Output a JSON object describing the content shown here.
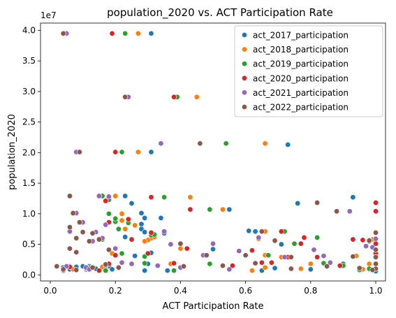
{
  "chart_data": {
    "type": "scatter",
    "title": "population_2020 vs. ACT Participation Rate",
    "xlabel": "ACT Participation Rate",
    "ylabel": "population_2020",
    "y_offset_text": "1e7",
    "xlim": [
      -0.03,
      1.03
    ],
    "ylim": [
      -1000000,
      41200000
    ],
    "x_ticks": [
      0.0,
      0.2,
      0.4,
      0.6,
      0.8,
      1.0
    ],
    "x_tick_labels": [
      "0.0",
      "0.2",
      "0.4",
      "0.6",
      "0.8",
      "1.0"
    ],
    "y_ticks": [
      0,
      5000000,
      10000000,
      15000000,
      20000000,
      25000000,
      30000000,
      35000000,
      40000000
    ],
    "y_tick_labels": [
      "0.0",
      "0.5",
      "1.0",
      "1.5",
      "2.0",
      "2.5",
      "3.0",
      "3.5",
      "4.0"
    ],
    "grid": false,
    "legend_position": "top-right",
    "series": [
      {
        "name": "act_2017_participation",
        "color": "#1f77b4",
        "points": [
          [
            0.31,
            39500000
          ],
          [
            0.31,
            20100000
          ],
          [
            0.73,
            21300000
          ],
          [
            0.23,
            12900000
          ],
          [
            0.93,
            12700000
          ],
          [
            0.25,
            11700000
          ],
          [
            0.76,
            11700000
          ],
          [
            0.55,
            10700000
          ],
          [
            0.28,
            10100000
          ],
          [
            0.29,
            9300000
          ],
          [
            0.34,
            9300000
          ],
          [
            0.28,
            8300000
          ],
          [
            0.28,
            7500000
          ],
          [
            0.29,
            7000000
          ],
          [
            0.35,
            6800000
          ],
          [
            0.63,
            7100000
          ],
          [
            0.23,
            6200000
          ],
          [
            0.31,
            3600000
          ],
          [
            0.26,
            3100000
          ],
          [
            0.71,
            5000000
          ],
          [
            0.5,
            4200000
          ],
          [
            0.3,
            1800000
          ],
          [
            0.29,
            700000
          ],
          [
            0.8,
            900000
          ],
          [
            0.36,
            700000
          ],
          [
            0.18,
            1400000
          ],
          [
            0.14,
            1000000
          ],
          [
            0.12,
            1400000
          ],
          [
            0.06,
            900000
          ],
          [
            0.04,
            1200000
          ],
          [
            0.69,
            1100000
          ],
          [
            0.84,
            1900000
          ],
          [
            0.65,
            700000
          ],
          [
            1.0,
            5100000
          ],
          [
            1.0,
            3200000
          ],
          [
            1.0,
            2900000
          ],
          [
            1.0,
            4000000
          ],
          [
            1.0,
            1800000
          ],
          [
            1.0,
            1000000
          ],
          [
            1.0,
            600000
          ],
          [
            1.0,
            3000000
          ],
          [
            0.98,
            1800000
          ],
          [
            0.98,
            900000
          ],
          [
            0.9,
            1800000
          ],
          [
            0.19,
            900000
          ],
          [
            0.21,
            1100000
          ],
          [
            0.17,
            700000
          ],
          [
            0.08,
            1300000
          ],
          [
            0.1,
            1400000
          ],
          [
            0.4,
            4300000
          ],
          [
            0.61,
            7200000
          ]
        ]
      },
      {
        "name": "act_2018_participation",
        "color": "#ff7f0e",
        "points": [
          [
            0.27,
            39500000
          ],
          [
            0.45,
            29100000
          ],
          [
            0.27,
            20100000
          ],
          [
            0.66,
            21500000
          ],
          [
            0.2,
            12900000
          ],
          [
            0.43,
            12700000
          ],
          [
            0.22,
            10000000
          ],
          [
            0.53,
            10700000
          ],
          [
            0.22,
            8900000
          ],
          [
            0.31,
            6000000
          ],
          [
            0.3,
            5700000
          ],
          [
            0.15,
            5900000
          ],
          [
            0.32,
            6200000
          ],
          [
            0.64,
            5900000
          ],
          [
            0.66,
            7100000
          ],
          [
            0.71,
            2900000
          ],
          [
            0.66,
            3200000
          ],
          [
            0.4,
            4300000
          ],
          [
            0.23,
            7500000
          ],
          [
            0.29,
            5500000
          ],
          [
            0.26,
            8100000
          ],
          [
            0.17,
            1000000
          ],
          [
            0.13,
            1200000
          ],
          [
            0.07,
            900000
          ],
          [
            0.05,
            1400000
          ],
          [
            0.8,
            1800000
          ],
          [
            0.77,
            1000000
          ],
          [
            0.89,
            1500000
          ],
          [
            1.0,
            5100000
          ],
          [
            0.99,
            5800000
          ],
          [
            1.0,
            2900000
          ],
          [
            0.94,
            3100000
          ],
          [
            0.98,
            1800000
          ],
          [
            0.99,
            800000
          ],
          [
            0.96,
            900000
          ],
          [
            0.37,
            1800000
          ],
          [
            0.19,
            3500000
          ],
          [
            0.16,
            1300000
          ],
          [
            0.62,
            700000
          ],
          [
            0.66,
            1200000
          ]
        ]
      },
      {
        "name": "act_2019_participation",
        "color": "#2ca02c",
        "points": [
          [
            0.23,
            39500000
          ],
          [
            0.39,
            29100000
          ],
          [
            0.22,
            20100000
          ],
          [
            0.54,
            21500000
          ],
          [
            0.16,
            12900000
          ],
          [
            0.35,
            12700000
          ],
          [
            0.18,
            12300000
          ],
          [
            0.49,
            10700000
          ],
          [
            0.18,
            10000000
          ],
          [
            0.24,
            8500000
          ],
          [
            0.2,
            8700000
          ],
          [
            0.21,
            7500000
          ],
          [
            0.31,
            6500000
          ],
          [
            0.32,
            6600000
          ],
          [
            0.67,
            3200000
          ],
          [
            0.72,
            7100000
          ],
          [
            0.75,
            5100000
          ],
          [
            0.82,
            6100000
          ],
          [
            0.98,
            5700000
          ],
          [
            1.0,
            3900000
          ],
          [
            0.29,
            3000000
          ],
          [
            0.22,
            3500000
          ],
          [
            0.16,
            5800000
          ],
          [
            0.12,
            1200000
          ],
          [
            0.11,
            900000
          ],
          [
            0.06,
            1400000
          ],
          [
            0.38,
            700000
          ],
          [
            0.49,
            1800000
          ],
          [
            0.73,
            2900000
          ],
          [
            0.84,
            1900000
          ],
          [
            0.9,
            1500000
          ],
          [
            1.0,
            2900000
          ],
          [
            1.0,
            4100000
          ],
          [
            1.0,
            1800000
          ],
          [
            1.0,
            1000000
          ],
          [
            0.95,
            800000
          ],
          [
            0.98,
            1000000
          ],
          [
            0.2,
            9200000
          ],
          [
            0.29,
            1900000
          ],
          [
            0.17,
            700000
          ]
        ]
      },
      {
        "name": "act_2020_participation",
        "color": "#d62728",
        "points": [
          [
            0.19,
            39500000
          ],
          [
            0.38,
            29100000
          ],
          [
            0.2,
            20100000
          ],
          [
            0.15,
            12900000
          ],
          [
            0.31,
            12700000
          ],
          [
            0.17,
            12100000
          ],
          [
            0.43,
            10700000
          ],
          [
            0.18,
            8600000
          ],
          [
            0.24,
            9100000
          ],
          [
            0.25,
            5800000
          ],
          [
            0.31,
            6900000
          ],
          [
            0.71,
            7100000
          ],
          [
            0.77,
            5100000
          ],
          [
            0.78,
            6100000
          ],
          [
            1.0,
            11800000
          ],
          [
            1.0,
            10400000
          ],
          [
            0.96,
            5700000
          ],
          [
            0.98,
            5500000
          ],
          [
            0.65,
            2000000
          ],
          [
            0.62,
            4000000
          ],
          [
            0.3,
            3500000
          ],
          [
            0.42,
            4300000
          ],
          [
            0.56,
            1500000
          ],
          [
            0.73,
            2900000
          ],
          [
            0.82,
            2900000
          ],
          [
            0.89,
            1500000
          ],
          [
            1.0,
            5100000
          ],
          [
            1.0,
            3500000
          ],
          [
            1.0,
            2900000
          ],
          [
            1.0,
            1800000
          ],
          [
            1.0,
            1000000
          ],
          [
            0.93,
            5800000
          ],
          [
            0.13,
            6800000
          ],
          [
            0.11,
            1100000
          ],
          [
            0.06,
            1300000
          ],
          [
            0.2,
            3200000
          ],
          [
            0.15,
            700000
          ],
          [
            0.18,
            1800000
          ],
          [
            0.38,
            1900000
          ],
          [
            0.68,
            2000000
          ]
        ]
      },
      {
        "name": "act_2021_participation",
        "color": "#9467bd",
        "points": [
          [
            0.05,
            39500000
          ],
          [
            0.24,
            29100000
          ],
          [
            0.08,
            20100000
          ],
          [
            0.34,
            21500000
          ],
          [
            0.18,
            12800000
          ],
          [
            0.15,
            12900000
          ],
          [
            0.08,
            10100000
          ],
          [
            0.1,
            8600000
          ],
          [
            0.14,
            7000000
          ],
          [
            0.17,
            8200000
          ],
          [
            0.2,
            4300000
          ],
          [
            0.13,
            5500000
          ],
          [
            0.06,
            7100000
          ],
          [
            0.16,
            6000000
          ],
          [
            0.35,
            7100000
          ],
          [
            0.37,
            5000000
          ],
          [
            0.5,
            5100000
          ],
          [
            0.47,
            3200000
          ],
          [
            0.58,
            3900000
          ],
          [
            0.64,
            6100000
          ],
          [
            0.72,
            2900000
          ],
          [
            0.81,
            4100000
          ],
          [
            0.84,
            3100000
          ],
          [
            0.86,
            2000000
          ],
          [
            0.92,
            10400000
          ],
          [
            0.97,
            4700000
          ],
          [
            1.0,
            5900000
          ],
          [
            1.0,
            2900000
          ],
          [
            1.0,
            1800000
          ],
          [
            1.0,
            1000000
          ],
          [
            0.99,
            4500000
          ],
          [
            0.95,
            1100000
          ],
          [
            0.55,
            900000
          ],
          [
            0.4,
            1200000
          ],
          [
            0.33,
            1500000
          ],
          [
            0.25,
            1800000
          ],
          [
            0.22,
            2000000
          ],
          [
            0.17,
            1500000
          ],
          [
            0.11,
            1200000
          ],
          [
            0.05,
            1400000
          ],
          [
            0.04,
            700000
          ],
          [
            0.12,
            900000
          ]
        ]
      },
      {
        "name": "act_2022_participation",
        "color": "#8c564b",
        "points": [
          [
            0.04,
            39500000
          ],
          [
            0.23,
            29100000
          ],
          [
            0.09,
            20100000
          ],
          [
            0.46,
            21500000
          ],
          [
            0.06,
            12900000
          ],
          [
            0.07,
            10100000
          ],
          [
            0.09,
            8600000
          ],
          [
            0.1,
            7000000
          ],
          [
            0.13,
            6800000
          ],
          [
            0.06,
            7800000
          ],
          [
            0.12,
            5500000
          ],
          [
            0.08,
            6000000
          ],
          [
            0.08,
            3700000
          ],
          [
            0.06,
            4300000
          ],
          [
            0.15,
            5800000
          ],
          [
            0.18,
            4100000
          ],
          [
            0.17,
            1700000
          ],
          [
            0.4,
            5100000
          ],
          [
            0.48,
            3200000
          ],
          [
            0.65,
            7100000
          ],
          [
            0.69,
            5600000
          ],
          [
            0.74,
            2900000
          ],
          [
            0.82,
            11800000
          ],
          [
            0.88,
            10400000
          ],
          [
            0.93,
            3000000
          ],
          [
            0.98,
            5600000
          ],
          [
            1.0,
            6900000
          ],
          [
            1.0,
            4100000
          ],
          [
            1.0,
            2900000
          ],
          [
            1.0,
            1800000
          ],
          [
            1.0,
            1000000
          ],
          [
            0.99,
            800000
          ],
          [
            0.95,
            1100000
          ],
          [
            0.85,
            1400000
          ],
          [
            0.74,
            1000000
          ],
          [
            0.63,
            1900000
          ],
          [
            0.53,
            1500000
          ],
          [
            0.41,
            1400000
          ],
          [
            0.21,
            1200000
          ],
          [
            0.13,
            1200000
          ],
          [
            0.02,
            1400000
          ],
          [
            0.04,
            900000
          ],
          [
            0.08,
            800000
          ],
          [
            0.6,
            3200000
          ]
        ]
      }
    ]
  }
}
